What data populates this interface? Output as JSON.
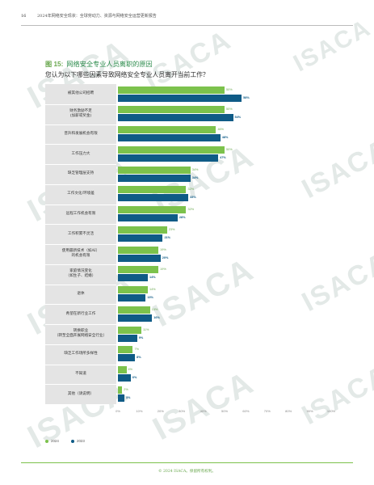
{
  "header": {
    "page_number": "16",
    "title": "2024年网络安全现状：全球劳动力、资源与网络安全运营更新报告"
  },
  "figure": {
    "number": "图 15:",
    "title": "网络安全专业人员离职的原因",
    "subtitle": "您认为以下哪些因素导致网络安全专业人员离开当前工作？"
  },
  "watermark": "ISACA",
  "chart_data": {
    "type": "bar",
    "orientation": "horizontal",
    "categories": [
      "被其他公司招聘",
      "财务激励不足\n(加薪或奖金)",
      "晋升和发展机会有限",
      "工作压力大",
      "缺乏管理层支持",
      "工作文化/环境差",
      "远程工作机会有限",
      "工作积累不灵活",
      "使用最新技术（如AI）\n的机会有限",
      "家庭情况变化\n（如生子、结婚）",
      "退休",
      "希望在新行业工作",
      "转换职业\n（转至全面开展网络安全行业）",
      "缺乏工作场所多样性",
      "不知道",
      "其他（请说明）"
    ],
    "series": [
      {
        "name": "2024",
        "color": "#7cc24c",
        "values": [
          50,
          50,
          46,
          50,
          34,
          32,
          32,
          23,
          19,
          19,
          14,
          15,
          11,
          7,
          4,
          2
        ]
      },
      {
        "name": "2023",
        "color": "#0f5b86",
        "values": [
          58,
          54,
          48,
          47,
          34,
          33,
          28,
          21,
          20,
          14,
          13,
          16,
          9,
          8,
          6,
          3
        ]
      }
    ],
    "value_labels": {
      "2024": [
        "50%",
        "50%",
        "46%",
        "50%",
        "34%",
        "32%",
        "32%",
        "23%",
        "19%",
        "19%",
        "14%",
        "15%",
        "11%",
        "7%",
        "4%",
        "2%"
      ],
      "2023": [
        "58%",
        "54%",
        "48%",
        "47%",
        "34%",
        "33%",
        "28%",
        "21%",
        "20%",
        "14%",
        "13%",
        "16%",
        "9%",
        "8%",
        "6%",
        "3%"
      ]
    },
    "x_ticks": [
      "0%",
      "10%",
      "20%",
      "30%",
      "40%",
      "50%",
      "60%",
      "70%",
      "80%",
      "90%",
      "100%"
    ],
    "xlim": [
      0,
      100
    ]
  },
  "footer": {
    "copyright": "© 2024 ISACA。保留所有权利。"
  }
}
